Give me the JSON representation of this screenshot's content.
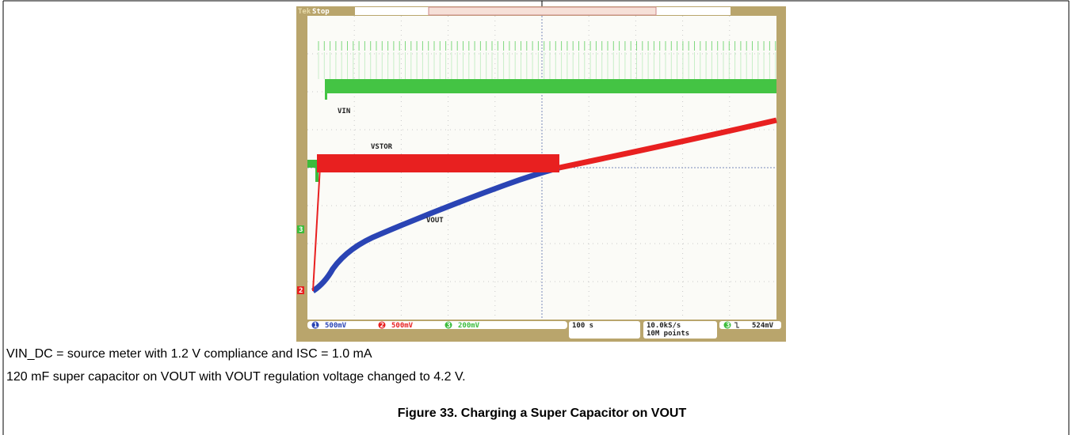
{
  "scope": {
    "brand": "Tek",
    "status": "Stop",
    "traces": {
      "vin": "VIN",
      "vstor": "VSTOR",
      "vout": "VOUT"
    },
    "markers": [
      "3",
      "2"
    ],
    "channels": [
      {
        "num": "1",
        "scale": "500mV"
      },
      {
        "num": "2",
        "scale": "500mV"
      },
      {
        "num": "3",
        "scale": "200mV"
      }
    ],
    "timebase": "100 s",
    "sample_rate": "10.0kS/s",
    "record_length": "10M points",
    "trigger": {
      "channel": "3",
      "level": "524mV"
    }
  },
  "caption": {
    "lines": [
      "VIN_DC = source meter with 1.2 V compliance and ISC = 1.0 mA",
      "120 mF super capacitor on VOUT with VOUT regulation voltage changed to 4.2 V."
    ]
  },
  "figure_title": "Figure 33. Charging a Super Capacitor on VOUT"
}
